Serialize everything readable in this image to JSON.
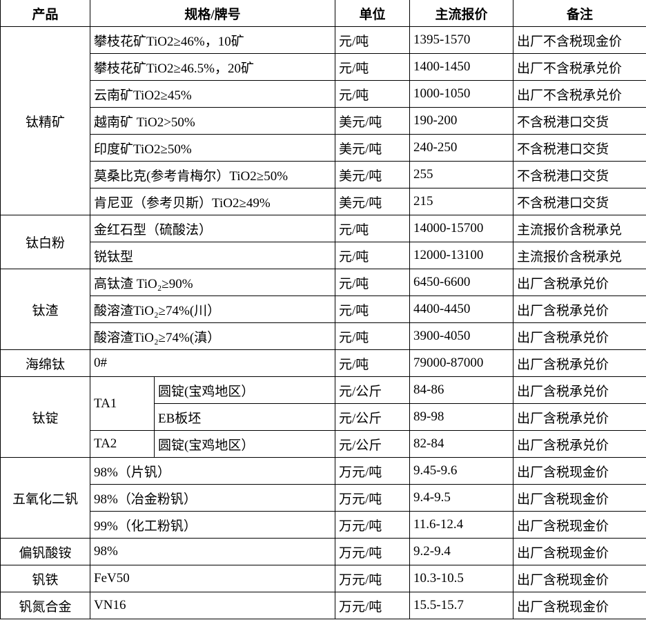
{
  "headers": [
    "产品",
    "规格/牌号",
    "单位",
    "主流报价",
    "备注"
  ],
  "groups": [
    {
      "product": "钛精矿",
      "rows": [
        {
          "spec": "攀枝花矿TiO2≥46%，10矿",
          "unit": "元/吨",
          "price": "1395-1570",
          "note": "出厂不含税现金价"
        },
        {
          "spec": "攀枝花矿TiO2≥46.5%，20矿",
          "unit": "元/吨",
          "price": "1400-1450",
          "note": "出厂不含税承兑价"
        },
        {
          "spec": "云南矿TiO2≥45%",
          "unit": "元/吨",
          "price": "1000-1050",
          "note": "出厂不含税承兑价"
        },
        {
          "spec": "越南矿 TiO2>50%",
          "unit": "美元/吨",
          "price": "190-200",
          "note": "不含税港口交货"
        },
        {
          "spec": "印度矿TiO2≥50%",
          "unit": "美元/吨",
          "price": "240-250",
          "note": "不含税港口交货"
        },
        {
          "spec": "莫桑比克(参考肯梅尔）TiO2≥50%",
          "unit": "美元/吨",
          "price": "255",
          "note": "不含税港口交货"
        },
        {
          "spec": "肯尼亚（参考贝斯）TiO2≥49%",
          "unit": "美元/吨",
          "price": "215",
          "note": "不含税港口交货"
        }
      ]
    },
    {
      "product": "钛白粉",
      "rows": [
        {
          "spec": "金红石型（硫酸法）",
          "unit": "元/吨",
          "price": "14000-15700",
          "note": "主流报价含税承兑"
        },
        {
          "spec": "锐钛型",
          "unit": "元/吨",
          "price": "12000-13100",
          "note": "主流报价含税承兑"
        }
      ]
    },
    {
      "product": "钛渣",
      "rows": [
        {
          "spec": "高钛渣 TiO₂≥90%",
          "unit": "元/吨",
          "price": "6450-6600",
          "note": "出厂含税承兑价"
        },
        {
          "spec": "酸溶渣TiO₂≥74%(川）",
          "unit": "元/吨",
          "price": "4400-4450",
          "note": "出厂含税承兑价"
        },
        {
          "spec": "酸溶渣TiO₂≥74%(滇）",
          "unit": "元/吨",
          "price": "3900-4050",
          "note": "出厂含税承兑价"
        }
      ]
    },
    {
      "product": "海绵钛",
      "rows": [
        {
          "spec": "0#",
          "unit": "元/吨",
          "price": "79000-87000",
          "note": "出厂含税承兑价"
        }
      ]
    },
    {
      "product": "钛锭",
      "rows": [
        {
          "grade": "TA1",
          "grade_span": 2,
          "spec": "圆锭(宝鸡地区）",
          "unit": "元/公斤",
          "price": "84-86",
          "note": "出厂含税承兑价"
        },
        {
          "spec": "EB板坯",
          "unit": "元/公斤",
          "price": "89-98",
          "note": "出厂含税承兑价"
        },
        {
          "grade": "TA2",
          "grade_span": 1,
          "spec": "圆锭(宝鸡地区）",
          "unit": "元/公斤",
          "price": "82-84",
          "note": "出厂含税承兑价"
        }
      ]
    },
    {
      "product": "五氧化二钒",
      "rows": [
        {
          "spec": "98%（片钒）",
          "unit": "万元/吨",
          "price": "9.45-9.6",
          "note": "出厂含税现金价"
        },
        {
          "spec": "98%（冶金粉钒）",
          "unit": "万元/吨",
          "price": "9.4-9.5",
          "note": "出厂含税现金价"
        },
        {
          "spec": "99%（化工粉钒）",
          "unit": "万元/吨",
          "price": "11.6-12.4",
          "note": "出厂含税现金价"
        }
      ]
    },
    {
      "product": "偏钒酸铵",
      "rows": [
        {
          "spec": "98%",
          "unit": "万元/吨",
          "price": "9.2-9.4",
          "note": "出厂含税现金价"
        }
      ]
    },
    {
      "product": "钒铁",
      "rows": [
        {
          "spec": "FeV50",
          "unit": "万元/吨",
          "price": "10.3-10.5",
          "note": "出厂含税现金价"
        }
      ]
    },
    {
      "product": "钒氮合金",
      "rows": [
        {
          "spec": "VN16",
          "unit": "万元/吨",
          "price": "15.5-15.7",
          "note": "出厂含税现金价"
        }
      ]
    }
  ]
}
